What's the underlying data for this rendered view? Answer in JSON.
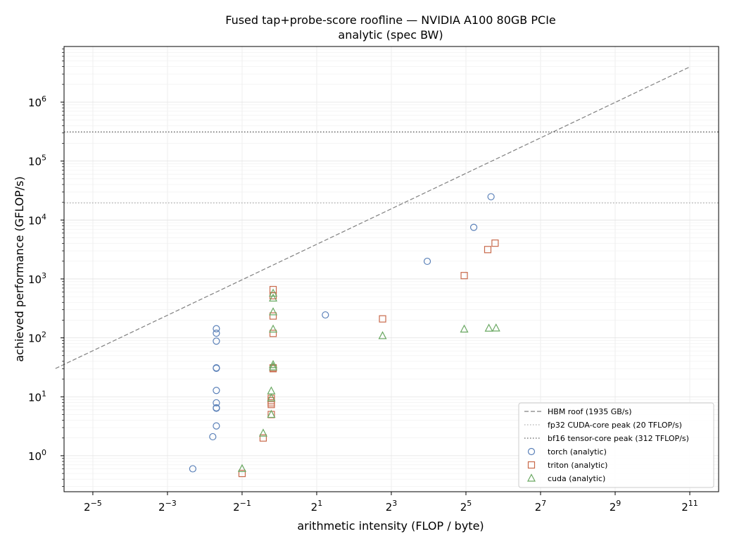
{
  "chart_data": {
    "type": "scatter",
    "title": "Fused tap+probe-score roofline — NVIDIA A100 80GB PCIe",
    "subtitle": "analytic (spec BW)",
    "xlabel": "arithmetic intensity  (FLOP / byte)",
    "ylabel": "achieved performance  (GFLOP/s)",
    "x_scale": "log2",
    "y_scale": "log10",
    "xlim": [
      0.0183,
      3500
    ],
    "ylim": [
      0.245,
      8800000
    ],
    "x_ticks": [
      {
        "base": "2",
        "exp": "−5",
        "value": 0.03125
      },
      {
        "base": "2",
        "exp": "−3",
        "value": 0.125
      },
      {
        "base": "2",
        "exp": "−1",
        "value": 0.5
      },
      {
        "base": "2",
        "exp": "1",
        "value": 2
      },
      {
        "base": "2",
        "exp": "3",
        "value": 8
      },
      {
        "base": "2",
        "exp": "5",
        "value": 32
      },
      {
        "base": "2",
        "exp": "7",
        "value": 128
      },
      {
        "base": "2",
        "exp": "9",
        "value": 512
      },
      {
        "base": "2",
        "exp": "11",
        "value": 2048
      }
    ],
    "y_ticks": [
      {
        "base": "10",
        "exp": "0",
        "value": 1
      },
      {
        "base": "10",
        "exp": "1",
        "value": 10
      },
      {
        "base": "10",
        "exp": "2",
        "value": 100
      },
      {
        "base": "10",
        "exp": "3",
        "value": 1000
      },
      {
        "base": "10",
        "exp": "4",
        "value": 10000
      },
      {
        "base": "10",
        "exp": "5",
        "value": 100000
      },
      {
        "base": "10",
        "exp": "6",
        "value": 1000000
      }
    ],
    "grid": true,
    "legend_position": "bottom-right",
    "lines": [
      {
        "name": "HBM roof (1935 GB/s)",
        "style": "dashed",
        "color": "#808080",
        "kind": "roof",
        "bandwidth_gbps": 1935,
        "x_range": [
          0.0156,
          2048
        ]
      },
      {
        "name": "fp32 CUDA-core peak (20 TFLOP/s)",
        "style": "dotted",
        "color": "#b0b0b0",
        "kind": "horizontal",
        "y": 19500
      },
      {
        "name": "bf16 tensor-core peak (312 TFLOP/s)",
        "style": "dotted",
        "color": "#606060",
        "kind": "horizontal",
        "y": 312000
      }
    ],
    "series": [
      {
        "name": "torch (analytic)",
        "marker": "circle",
        "color": "#5a80b8",
        "points": [
          [
            0.2,
            0.6
          ],
          [
            0.29,
            2.1
          ],
          [
            0.31,
            3.2
          ],
          [
            0.31,
            6.5
          ],
          [
            0.31,
            6.4
          ],
          [
            0.31,
            7.9
          ],
          [
            0.31,
            12.8
          ],
          [
            0.31,
            31.0
          ],
          [
            0.31,
            30.5
          ],
          [
            0.31,
            88
          ],
          [
            0.31,
            120
          ],
          [
            0.31,
            143
          ],
          [
            2.35,
            245
          ],
          [
            15.6,
            1990
          ],
          [
            37.0,
            7500
          ],
          [
            51.0,
            24800
          ]
        ]
      },
      {
        "name": "triton (analytic)",
        "marker": "square",
        "color": "#c8694a",
        "points": [
          [
            0.5,
            0.5
          ],
          [
            0.74,
            2.0
          ],
          [
            0.86,
            5.0
          ],
          [
            0.86,
            7.4
          ],
          [
            0.86,
            7.9
          ],
          [
            0.86,
            8.6
          ],
          [
            0.86,
            9.4
          ],
          [
            0.89,
            30.0
          ],
          [
            0.89,
            31.0
          ],
          [
            0.89,
            119
          ],
          [
            0.89,
            235
          ],
          [
            0.89,
            520
          ],
          [
            0.89,
            660
          ],
          [
            6.8,
            210
          ],
          [
            31.0,
            1140
          ],
          [
            48.0,
            3150
          ],
          [
            55.0,
            4050
          ]
        ]
      },
      {
        "name": "cuda (analytic)",
        "marker": "triangle",
        "color": "#6aa862",
        "points": [
          [
            0.5,
            0.6
          ],
          [
            0.74,
            2.4
          ],
          [
            0.86,
            5.0
          ],
          [
            0.86,
            9.5
          ],
          [
            0.86,
            12.5
          ],
          [
            0.89,
            32.0
          ],
          [
            0.89,
            35.0
          ],
          [
            0.89,
            140
          ],
          [
            0.89,
            275
          ],
          [
            0.89,
            470
          ],
          [
            0.89,
            570
          ],
          [
            6.8,
            108
          ],
          [
            31.0,
            140
          ],
          [
            49.0,
            145
          ],
          [
            56.0,
            146
          ]
        ]
      }
    ]
  }
}
